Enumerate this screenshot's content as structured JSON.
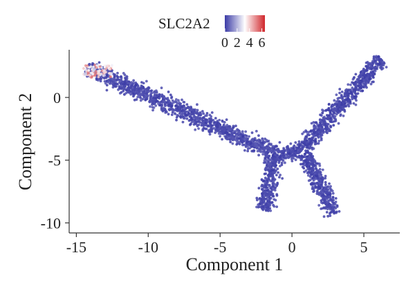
{
  "chart_data": {
    "type": "scatter",
    "xlabel": "Component 1",
    "ylabel": "Component 2",
    "xlim": [
      -15.5,
      7.5
    ],
    "ylim": [
      -10.8,
      3.8
    ],
    "x_ticks": [
      -15,
      -10,
      -5,
      0,
      5
    ],
    "y_ticks": [
      0,
      -5,
      -10
    ],
    "grid": false,
    "legend": {
      "title": "SLC2A2",
      "ticks": [
        0,
        2,
        4,
        6
      ],
      "range": [
        0,
        6.5
      ],
      "colors": [
        "#3b3ba6",
        "#ffffff",
        "#d0262b"
      ],
      "placement": "top-center"
    },
    "point_color": "#3b3ba6",
    "branches": [
      {
        "segments": [
          {
            "from": [
              -14.3,
              2.4
            ],
            "to": [
              -0.9,
              -4.6
            ]
          }
        ],
        "expression": 0.5
      },
      {
        "segments": [
          {
            "from": [
              -0.9,
              -4.6
            ],
            "to": [
              0.6,
              -4.3
            ]
          }
        ],
        "expression": 0.4
      },
      {
        "segments": [
          {
            "from": [
              0.6,
              -4.3
            ],
            "to": [
              6.2,
              3.1
            ]
          }
        ],
        "expression": 0.4
      },
      {
        "segments": [
          {
            "from": [
              -1.3,
              -4.7
            ],
            "to": [
              -1.9,
              -9.0
            ]
          }
        ],
        "expression": 0.4
      },
      {
        "segments": [
          {
            "from": [
              0.9,
              -4.5
            ],
            "to": [
              2.9,
              -9.3
            ]
          }
        ],
        "expression": 0.4
      }
    ],
    "high_expression_region": {
      "x": [
        -14.5,
        -12.5
      ],
      "y": [
        1.6,
        2.6
      ],
      "expression": 5.5
    }
  }
}
